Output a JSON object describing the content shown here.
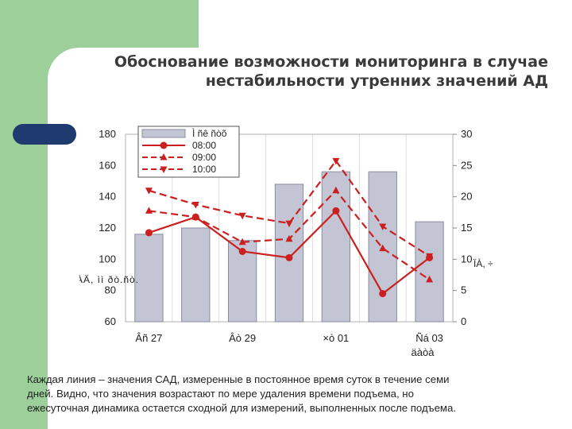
{
  "slide": {
    "title_line1": "Обоснование возможности мониторинга в случае",
    "title_line2": "нестабильности утренних значений АД",
    "caption_line1": "Каждая линия – значения САД, измеренные в постоянное время суток в течение семи",
    "caption_line2": "дней. Видно, что значения возрастают по мере удаления времени подъема, но",
    "caption_line3": "ежесуточная динамика остается сходной для измерений, выполненных после подъема."
  },
  "chart_data": {
    "type": "bar",
    "categories": [
      "Âñ 27",
      "",
      "Âò 29",
      "",
      "×ò 01",
      "",
      "Ñá 03"
    ],
    "xlabel": "äàòà",
    "left_axis": {
      "ylim": [
        60,
        180
      ],
      "ticks": [
        60,
        80,
        100,
        120,
        140,
        160,
        180
      ],
      "label": "ÀÄ, ìì ðò.ñò."
    },
    "right_axis": {
      "ylim": [
        0,
        30
      ],
      "ticks": [
        0,
        5,
        10,
        15,
        20,
        25,
        30
      ],
      "label": "ÏÀ, ÷"
    },
    "legend_position": "top-left",
    "colors": {
      "bar_fill": "#c3c5d4",
      "bar_edge": "#8a8ca0",
      "line": "#cc1f1f"
    },
    "series": [
      {
        "name": "Ì ñê ñòõ",
        "kind": "bar",
        "axis": "right",
        "values": [
          14,
          15,
          13,
          22,
          24,
          24,
          16
        ]
      },
      {
        "name": "08:00",
        "kind": "line",
        "dash": "solid",
        "marker": "circle",
        "axis": "left",
        "values": [
          117,
          127,
          105,
          101,
          131,
          78,
          101
        ]
      },
      {
        "name": "09:00",
        "kind": "line",
        "dash": "dashed",
        "marker": "triangle-up",
        "axis": "left",
        "values": [
          131,
          127,
          111,
          113,
          144,
          107,
          87
        ]
      },
      {
        "name": "10:00",
        "kind": "line",
        "dash": "dashed",
        "marker": "triangle-down",
        "axis": "left",
        "values": [
          144,
          135,
          128,
          123,
          163,
          121,
          102
        ]
      }
    ]
  }
}
